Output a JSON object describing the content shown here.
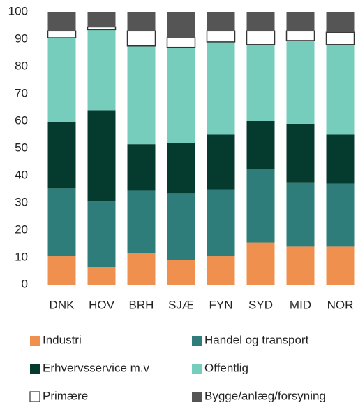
{
  "chart_data": {
    "type": "stacked_bar",
    "categories": [
      "DNK",
      "HOV",
      "BRH",
      "SJÆ",
      "FYN",
      "SYD",
      "MID",
      "NOR"
    ],
    "series": [
      {
        "name": "Industri",
        "color": "#f0904f",
        "values": [
          10.5,
          6.5,
          11.5,
          9,
          10.5,
          15.5,
          14,
          14
        ]
      },
      {
        "name": "Handel og transport",
        "color": "#2e7d7b",
        "values": [
          24.8,
          24,
          23,
          24.5,
          24.5,
          27,
          23.5,
          23
        ]
      },
      {
        "name": "Erhvervsservice m.v",
        "color": "#053b2e",
        "values": [
          24.2,
          33.5,
          17,
          18.5,
          20,
          17.5,
          21.5,
          18
        ]
      },
      {
        "name": "Offentlig",
        "color": "#76cdbb",
        "values": [
          31,
          29.5,
          36,
          35,
          34,
          28,
          30.5,
          33
        ]
      },
      {
        "name": "Primære",
        "color": "#ffffff",
        "values": [
          2.5,
          1,
          5.5,
          3.5,
          4,
          5,
          3.5,
          4.5
        ]
      },
      {
        "name": "Bygge/anlæg/forsyning",
        "color": "#555555",
        "values": [
          7,
          5.5,
          7,
          9.5,
          7,
          7,
          7,
          7.5
        ]
      }
    ],
    "ylim": [
      0,
      100
    ],
    "yticks": [
      0,
      10,
      20,
      30,
      40,
      50,
      60,
      70,
      80,
      90,
      100
    ],
    "grid": false
  }
}
